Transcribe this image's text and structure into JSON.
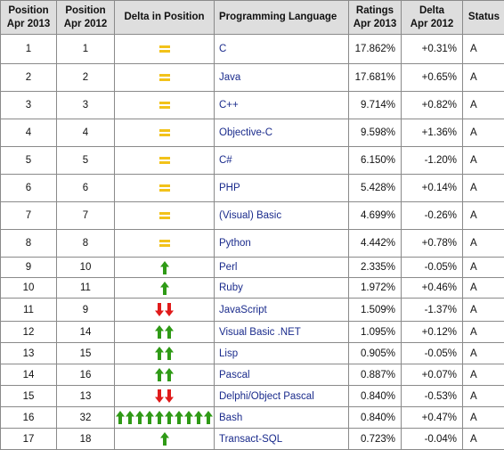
{
  "headers": {
    "pos2013": [
      "Position",
      "Apr 2013"
    ],
    "pos2012": [
      "Position",
      "Apr 2012"
    ],
    "delta_pos": "Delta in Position",
    "language": "Programming Language",
    "ratings": [
      "Ratings",
      "Apr 2013"
    ],
    "delta": [
      "Delta",
      "Apr 2012"
    ],
    "status": "Status"
  },
  "icons": {
    "same": "equals-icon",
    "up": "green-up-arrow-icon",
    "down": "red-down-arrow-icon"
  },
  "colors": {
    "up_arrow": "#2f9a16",
    "down_arrow": "#e01b1b",
    "equals": "#f2c21a",
    "header_bg": "#dedede",
    "language_link": "#1a2b8c"
  },
  "rows": [
    {
      "pos2013": "1",
      "pos2012": "1",
      "change": "same",
      "count": 0,
      "language": "C",
      "rating": "17.862%",
      "delta": "+0.31%",
      "status": "A",
      "h": 33
    },
    {
      "pos2013": "2",
      "pos2012": "2",
      "change": "same",
      "count": 0,
      "language": "Java",
      "rating": "17.681%",
      "delta": "+0.65%",
      "status": "A",
      "h": 31
    },
    {
      "pos2013": "3",
      "pos2012": "3",
      "change": "same",
      "count": 0,
      "language": "C++",
      "rating": "9.714%",
      "delta": "+0.82%",
      "status": "A",
      "h": 31
    },
    {
      "pos2013": "4",
      "pos2012": "4",
      "change": "same",
      "count": 0,
      "language": "Objective-C",
      "rating": "9.598%",
      "delta": "+1.36%",
      "status": "A",
      "h": 31
    },
    {
      "pos2013": "5",
      "pos2012": "5",
      "change": "same",
      "count": 0,
      "language": "C#",
      "rating": "6.150%",
      "delta": "-1.20%",
      "status": "A",
      "h": 31
    },
    {
      "pos2013": "6",
      "pos2012": "6",
      "change": "same",
      "count": 0,
      "language": "PHP",
      "rating": "5.428%",
      "delta": "+0.14%",
      "status": "A",
      "h": 31
    },
    {
      "pos2013": "7",
      "pos2012": "7",
      "change": "same",
      "count": 0,
      "language": "(Visual) Basic",
      "rating": "4.699%",
      "delta": "-0.26%",
      "status": "A",
      "h": 31
    },
    {
      "pos2013": "8",
      "pos2012": "8",
      "change": "same",
      "count": 0,
      "language": "Python",
      "rating": "4.442%",
      "delta": "+0.78%",
      "status": "A",
      "h": 31
    },
    {
      "pos2013": "9",
      "pos2012": "10",
      "change": "up",
      "count": 1,
      "language": "Perl",
      "rating": "2.335%",
      "delta": "-0.05%",
      "status": "A",
      "h": 23
    },
    {
      "pos2013": "10",
      "pos2012": "11",
      "change": "up",
      "count": 1,
      "language": "Ruby",
      "rating": "1.972%",
      "delta": "+0.46%",
      "status": "A",
      "h": 23
    },
    {
      "pos2013": "11",
      "pos2012": "9",
      "change": "down",
      "count": 2,
      "language": "JavaScript",
      "rating": "1.509%",
      "delta": "-1.37%",
      "status": "A",
      "h": 26
    },
    {
      "pos2013": "12",
      "pos2012": "14",
      "change": "up",
      "count": 2,
      "language": "Visual Basic .NET",
      "rating": "1.095%",
      "delta": "+0.12%",
      "status": "A",
      "h": 24
    },
    {
      "pos2013": "13",
      "pos2012": "15",
      "change": "up",
      "count": 2,
      "language": "Lisp",
      "rating": "0.905%",
      "delta": "-0.05%",
      "status": "A",
      "h": 24
    },
    {
      "pos2013": "14",
      "pos2012": "16",
      "change": "up",
      "count": 2,
      "language": "Pascal",
      "rating": "0.887%",
      "delta": "+0.07%",
      "status": "A",
      "h": 24
    },
    {
      "pos2013": "15",
      "pos2012": "13",
      "change": "down",
      "count": 2,
      "language": "Delphi/Object Pascal",
      "rating": "0.840%",
      "delta": "-0.53%",
      "status": "A",
      "h": 24
    },
    {
      "pos2013": "16",
      "pos2012": "32",
      "change": "up",
      "count": 10,
      "language": "Bash",
      "rating": "0.840%",
      "delta": "+0.47%",
      "status": "A",
      "h": 24
    },
    {
      "pos2013": "17",
      "pos2012": "18",
      "change": "up",
      "count": 1,
      "language": "Transact-SQL",
      "rating": "0.723%",
      "delta": "-0.04%",
      "status": "A",
      "h": 24
    }
  ]
}
